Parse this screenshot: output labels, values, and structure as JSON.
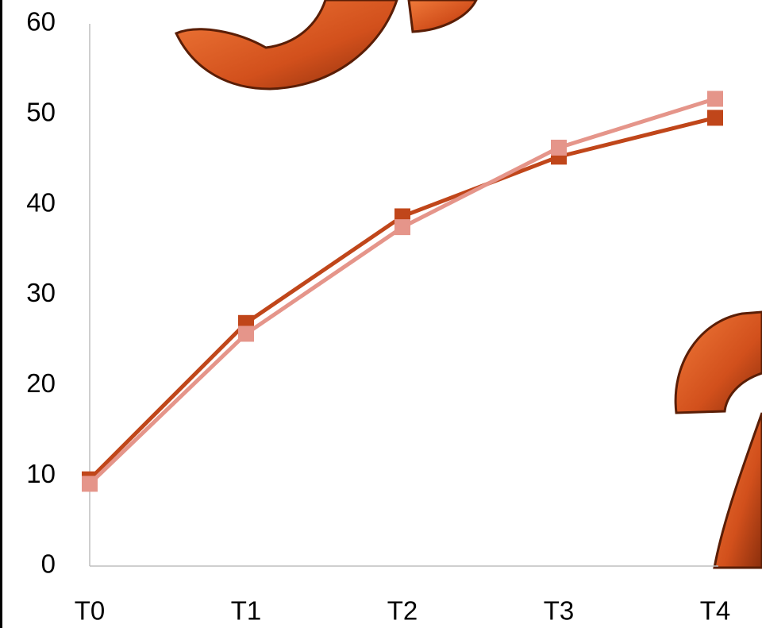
{
  "chart_data": {
    "type": "line",
    "categories": [
      "T0",
      "T1",
      "T2",
      "T3",
      "T4"
    ],
    "series": [
      {
        "color": "#c0461a",
        "values": [
          9.6,
          26.9,
          38.7,
          45.3,
          49.6
        ]
      },
      {
        "color": "#e5958a",
        "values": [
          9.1,
          25.7,
          37.5,
          46.3,
          51.7
        ]
      }
    ],
    "ylim": [
      0,
      60
    ],
    "yticks": [
      0,
      10,
      20,
      30,
      40,
      50,
      60
    ],
    "grid": false
  }
}
